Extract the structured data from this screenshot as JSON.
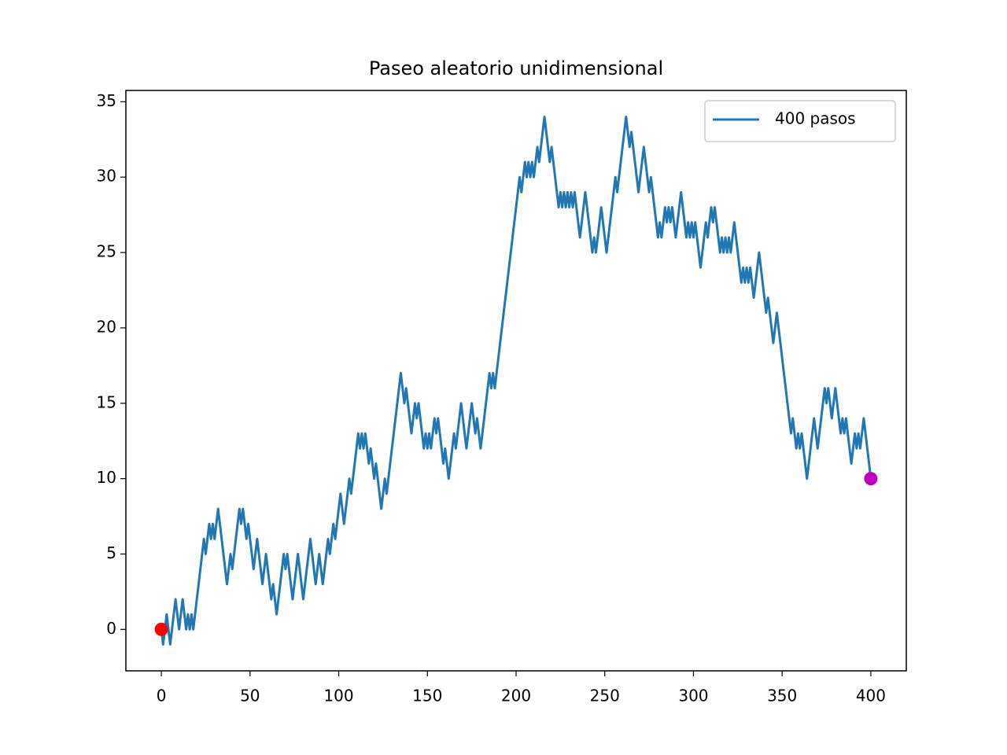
{
  "chart_data": {
    "type": "line",
    "title": "Paseo aleatorio unidimensional",
    "x": [
      0,
      1,
      2,
      3,
      4,
      5,
      6,
      7,
      8,
      9,
      10,
      11,
      12,
      13,
      14,
      15,
      16,
      17,
      18,
      19,
      20,
      21,
      22,
      23,
      24,
      25,
      26,
      27,
      28,
      29,
      30,
      31,
      32,
      33,
      34,
      35,
      36,
      37,
      38,
      39,
      40,
      41,
      42,
      43,
      44,
      45,
      46,
      47,
      48,
      49,
      50,
      51,
      52,
      53,
      54,
      55,
      56,
      57,
      58,
      59,
      60,
      61,
      62,
      63,
      64,
      65,
      66,
      67,
      68,
      69,
      70,
      71,
      72,
      73,
      74,
      75,
      76,
      77,
      78,
      79,
      80,
      81,
      82,
      83,
      84,
      85,
      86,
      87,
      88,
      89,
      90,
      91,
      92,
      93,
      94,
      95,
      96,
      97,
      98,
      99,
      100,
      101,
      102,
      103,
      104,
      105,
      106,
      107,
      108,
      109,
      110,
      111,
      112,
      113,
      114,
      115,
      116,
      117,
      118,
      119,
      120,
      121,
      122,
      123,
      124,
      125,
      126,
      127,
      128,
      129,
      130,
      131,
      132,
      133,
      134,
      135,
      136,
      137,
      138,
      139,
      140,
      141,
      142,
      143,
      144,
      145,
      146,
      147,
      148,
      149,
      150,
      151,
      152,
      153,
      154,
      155,
      156,
      157,
      158,
      159,
      160,
      161,
      162,
      163,
      164,
      165,
      166,
      167,
      168,
      169,
      170,
      171,
      172,
      173,
      174,
      175,
      176,
      177,
      178,
      179,
      180,
      181,
      182,
      183,
      184,
      185,
      186,
      187,
      188,
      189,
      190,
      191,
      192,
      193,
      194,
      195,
      196,
      197,
      198,
      199,
      200,
      201,
      202,
      203,
      204,
      205,
      206,
      207,
      208,
      209,
      210,
      211,
      212,
      213,
      214,
      215,
      216,
      217,
      218,
      219,
      220,
      221,
      222,
      223,
      224,
      225,
      226,
      227,
      228,
      229,
      230,
      231,
      232,
      233,
      234,
      235,
      236,
      237,
      238,
      239,
      240,
      241,
      242,
      243,
      244,
      245,
      246,
      247,
      248,
      249,
      250,
      251,
      252,
      253,
      254,
      255,
      256,
      257,
      258,
      259,
      260,
      261,
      262,
      263,
      264,
      265,
      266,
      267,
      268,
      269,
      270,
      271,
      272,
      273,
      274,
      275,
      276,
      277,
      278,
      279,
      280,
      281,
      282,
      283,
      284,
      285,
      286,
      287,
      288,
      289,
      290,
      291,
      292,
      293,
      294,
      295,
      296,
      297,
      298,
      299,
      300,
      301,
      302,
      303,
      304,
      305,
      306,
      307,
      308,
      309,
      310,
      311,
      312,
      313,
      314,
      315,
      316,
      317,
      318,
      319,
      320,
      321,
      322,
      323,
      324,
      325,
      326,
      327,
      328,
      329,
      330,
      331,
      332,
      333,
      334,
      335,
      336,
      337,
      338,
      339,
      340,
      341,
      342,
      343,
      344,
      345,
      346,
      347,
      348,
      349,
      350,
      351,
      352,
      353,
      354,
      355,
      356,
      357,
      358,
      359,
      360,
      361,
      362,
      363,
      364,
      365,
      366,
      367,
      368,
      369,
      370,
      371,
      372,
      373,
      374,
      375,
      376,
      377,
      378,
      379,
      380,
      381,
      382,
      383,
      384,
      385,
      386,
      387,
      388,
      389,
      390,
      391,
      392,
      393,
      394,
      395,
      396,
      397,
      398,
      399,
      400
    ],
    "series": [
      {
        "name": "400 pasos",
        "color": "#1f77b4",
        "values": [
          0,
          -1,
          0,
          1,
          0,
          -1,
          0,
          1,
          2,
          1,
          0,
          1,
          2,
          1,
          0,
          1,
          0,
          1,
          0,
          1,
          2,
          3,
          4,
          5,
          6,
          5,
          6,
          7,
          6,
          7,
          6,
          7,
          8,
          7,
          6,
          5,
          4,
          3,
          4,
          5,
          4,
          5,
          6,
          7,
          8,
          7,
          8,
          7,
          6,
          7,
          6,
          5,
          4,
          5,
          6,
          5,
          4,
          3,
          4,
          5,
          4,
          3,
          2,
          3,
          2,
          1,
          2,
          3,
          4,
          5,
          4,
          5,
          4,
          3,
          2,
          3,
          4,
          5,
          4,
          3,
          2,
          3,
          4,
          5,
          6,
          5,
          4,
          3,
          4,
          5,
          4,
          3,
          4,
          5,
          6,
          5,
          6,
          7,
          6,
          7,
          8,
          9,
          8,
          7,
          8,
          9,
          10,
          9,
          10,
          11,
          12,
          13,
          12,
          13,
          12,
          13,
          12,
          11,
          12,
          11,
          10,
          11,
          10,
          9,
          8,
          9,
          10,
          9,
          10,
          11,
          12,
          13,
          14,
          15,
          16,
          17,
          16,
          15,
          16,
          15,
          14,
          13,
          14,
          15,
          14,
          15,
          14,
          13,
          12,
          13,
          12,
          13,
          12,
          13,
          14,
          13,
          14,
          13,
          12,
          11,
          12,
          11,
          10,
          11,
          12,
          13,
          12,
          13,
          14,
          15,
          14,
          13,
          12,
          13,
          14,
          15,
          14,
          13,
          14,
          13,
          12,
          13,
          14,
          15,
          16,
          17,
          16,
          17,
          16,
          17,
          18,
          19,
          20,
          21,
          22,
          23,
          24,
          25,
          26,
          27,
          28,
          29,
          30,
          29,
          30,
          31,
          30,
          31,
          30,
          31,
          30,
          31,
          32,
          31,
          32,
          33,
          34,
          33,
          32,
          31,
          32,
          31,
          30,
          29,
          28,
          29,
          28,
          29,
          28,
          29,
          28,
          29,
          28,
          29,
          28,
          27,
          26,
          27,
          28,
          29,
          28,
          27,
          26,
          25,
          26,
          25,
          26,
          27,
          28,
          27,
          26,
          25,
          26,
          27,
          28,
          29,
          30,
          29,
          30,
          31,
          32,
          33,
          34,
          33,
          32,
          33,
          32,
          31,
          30,
          29,
          30,
          31,
          32,
          31,
          30,
          29,
          30,
          29,
          28,
          27,
          26,
          27,
          26,
          27,
          28,
          27,
          28,
          27,
          28,
          27,
          26,
          27,
          28,
          29,
          28,
          27,
          26,
          27,
          26,
          27,
          26,
          27,
          26,
          25,
          24,
          25,
          26,
          27,
          26,
          27,
          28,
          27,
          28,
          27,
          26,
          25,
          26,
          25,
          26,
          25,
          26,
          25,
          26,
          27,
          26,
          25,
          24,
          23,
          24,
          23,
          24,
          23,
          24,
          23,
          22,
          23,
          24,
          25,
          24,
          23,
          22,
          21,
          22,
          21,
          20,
          19,
          20,
          21,
          20,
          19,
          18,
          17,
          16,
          15,
          14,
          13,
          14,
          13,
          12,
          13,
          12,
          13,
          12,
          11,
          10,
          11,
          12,
          13,
          14,
          13,
          12,
          13,
          14,
          15,
          16,
          15,
          16,
          15,
          14,
          15,
          16,
          15,
          14,
          13,
          14,
          13,
          14,
          13,
          12,
          11,
          12,
          13,
          12,
          13,
          12,
          13,
          14,
          13,
          12,
          11,
          10
        ]
      }
    ],
    "points": [
      {
        "x": 0,
        "y": 0,
        "color": "#ff0000"
      },
      {
        "x": 400,
        "y": 10,
        "color": "#bf00bf"
      }
    ],
    "xlim": [
      -20,
      420
    ],
    "ylim": [
      -2.75,
      35.75
    ],
    "xticks": [
      0,
      50,
      100,
      150,
      200,
      250,
      300,
      350,
      400
    ],
    "yticks": [
      0,
      5,
      10,
      15,
      20,
      25,
      30,
      35
    ],
    "grid": false,
    "legend": "upper right"
  }
}
